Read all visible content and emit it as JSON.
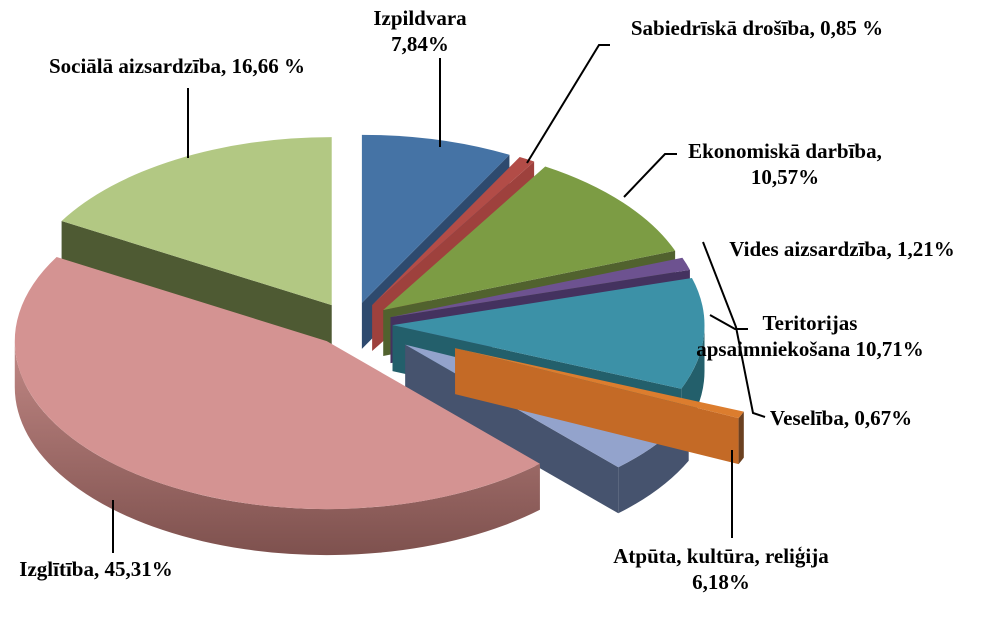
{
  "figure": {
    "background": "#FFFFFF",
    "text_color": "#000000",
    "leader_line_color": "#000000"
  },
  "chart_data": {
    "type": "pie",
    "style": "3d-exploded",
    "title": "",
    "unit": "%",
    "decimal_separator": ",",
    "legend_position": "none",
    "start_angle_deg": 0,
    "direction": "clockwise",
    "slices": [
      {
        "label": "Izpildvara",
        "value": 7.84,
        "label_lines": [
          "Izpildvara",
          "7,84%"
        ],
        "color": "#4573A5",
        "side_color": "#2E4A6E"
      },
      {
        "label": "Sabiedrīskā drošība",
        "value": 0.85,
        "label_lines": [
          "Sabiedrīskā drošība, 0,85 %"
        ],
        "color": "#B24C47",
        "side_color": "#9E413D"
      },
      {
        "label": "Ekonomiskā darbība",
        "value": 10.57,
        "label_lines": [
          "Ekonomiskā darbība,",
          "10,57%"
        ],
        "color": "#7C9C44",
        "side_color": "#51622E"
      },
      {
        "label": "Vides aizsardzība",
        "value": 1.21,
        "label_lines": [
          "Vides aizsardzība, 1,21%"
        ],
        "color": "#6D5290",
        "side_color": "#44325F"
      },
      {
        "label": "Teritorijas apsaimniekošana",
        "value": 10.71,
        "label_lines": [
          "Teritorijas",
          "apsaimniekošana 10,71%"
        ],
        "color": "#3C91A7",
        "side_color": "#235F6B"
      },
      {
        "label": "Veselība",
        "value": 0.67,
        "label_lines": [
          "Veselība, 0,67%"
        ],
        "color": "#DC7D2E",
        "side_color": "#C46A26"
      },
      {
        "label": "Atpūta, kultūra, reliģija",
        "value": 6.18,
        "label_lines": [
          "Atpūta, kultūra, reliģija",
          "6,18%"
        ],
        "color": "#93A3CC",
        "side_color": "#46536E"
      },
      {
        "label": "Izglītība",
        "value": 45.31,
        "label_lines": [
          "Izglītība, 45,31%"
        ],
        "color": "#D49392",
        "side_color": "#A66B68"
      },
      {
        "label": "Sociālā aizsardzība",
        "value": 16.66,
        "label_lines": [
          "Sociālā aizsardzība, 16,66 %"
        ],
        "color": "#B2C883",
        "side_color": "#4E5A33"
      }
    ]
  }
}
